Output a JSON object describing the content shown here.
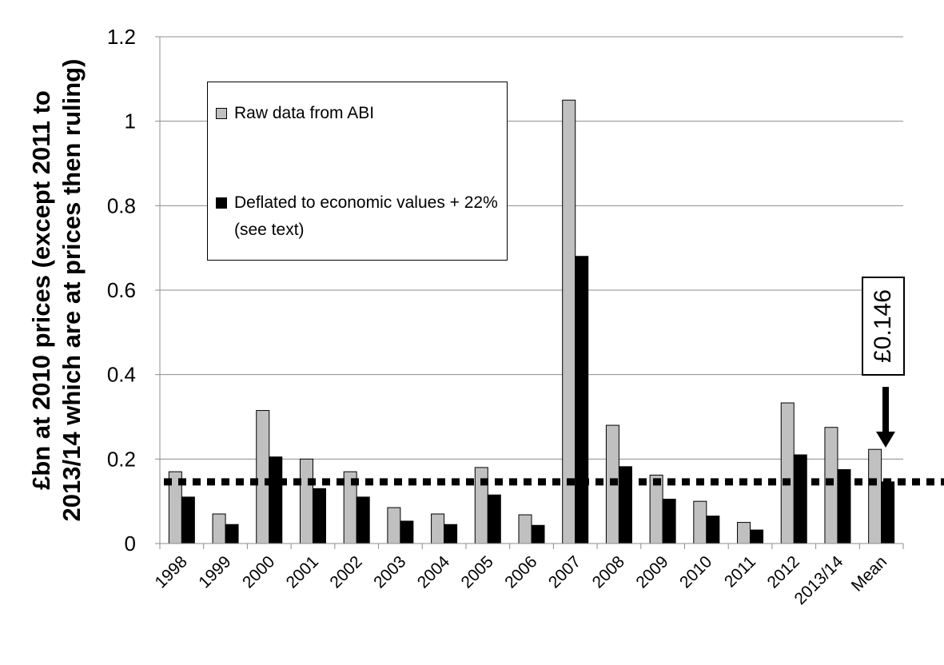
{
  "chart_data": {
    "type": "bar",
    "categories": [
      "1998",
      "1999",
      "2000",
      "2001",
      "2002",
      "2003",
      "2004",
      "2005",
      "2006",
      "2007",
      "2008",
      "2009",
      "2010",
      "2011",
      "2012",
      "2013/14",
      "Mean"
    ],
    "series": [
      {
        "name": "Raw data from ABI",
        "color": "#c0c0c0",
        "values": [
          0.17,
          0.07,
          0.315,
          0.2,
          0.17,
          0.085,
          0.07,
          0.18,
          0.068,
          1.05,
          0.28,
          0.162,
          0.1,
          0.05,
          0.333,
          0.275,
          0.223
        ]
      },
      {
        "name": "Deflated to economic values + 22% (see text)",
        "color": "#000000",
        "values": [
          0.11,
          0.045,
          0.205,
          0.13,
          0.11,
          0.053,
          0.045,
          0.115,
          0.043,
          0.68,
          0.182,
          0.105,
          0.065,
          0.032,
          0.21,
          0.175,
          0.146
        ]
      }
    ],
    "ylabel": "£bn at 2010 prices (except 2011 to 2013/14 which are at prices then ruling)",
    "yticks": [
      "0",
      "0.2",
      "0.4",
      "0.6",
      "0.8",
      "1",
      "1.2"
    ],
    "ylim": [
      0,
      1.2
    ],
    "grid": true,
    "legend_position": "top-left",
    "reference_line": {
      "value": 0.146,
      "style": "dotted",
      "color": "#000000"
    },
    "annotation": {
      "text": "£0.146",
      "points_to": "Mean"
    }
  }
}
